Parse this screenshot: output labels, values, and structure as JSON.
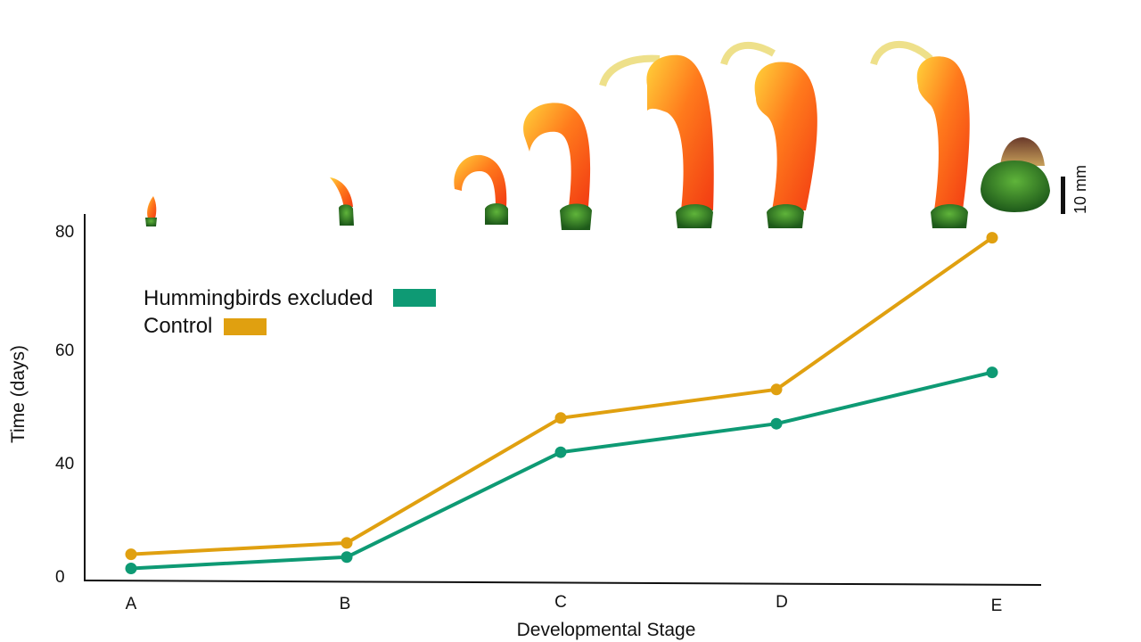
{
  "chart_data": {
    "type": "line",
    "categories": [
      "A",
      "B",
      "C",
      "D",
      "E"
    ],
    "xlabel": "Developmental Stage",
    "ylabel": "Time (days)",
    "y_tick_labels": [
      "0",
      "40",
      "60",
      "80"
    ],
    "ylim": [
      0,
      80
    ],
    "grid": false,
    "legend_position": "top-left",
    "series": [
      {
        "name": "Hummingbirds excluded",
        "color": "#0e9a74",
        "values": [
          3,
          7,
          42,
          47,
          56
        ]
      },
      {
        "name": "Control",
        "color": "#e0a010",
        "values": [
          8,
          12,
          48,
          53,
          79
        ]
      }
    ],
    "scale_bar_label": "10 mm"
  },
  "flower_images": [
    {
      "stage": "A",
      "depiction": "tiny bud"
    },
    {
      "stage": "B",
      "depiction": "small bud"
    },
    {
      "stage": "C",
      "depiction": "young curved flower"
    },
    {
      "stage": "C",
      "depiction": "curved flower"
    },
    {
      "stage": "D",
      "depiction": "open flower"
    },
    {
      "stage": "D",
      "depiction": "open flower"
    },
    {
      "stage": "E",
      "depiction": "mature flower"
    },
    {
      "stage": "E",
      "depiction": "fruit"
    }
  ]
}
